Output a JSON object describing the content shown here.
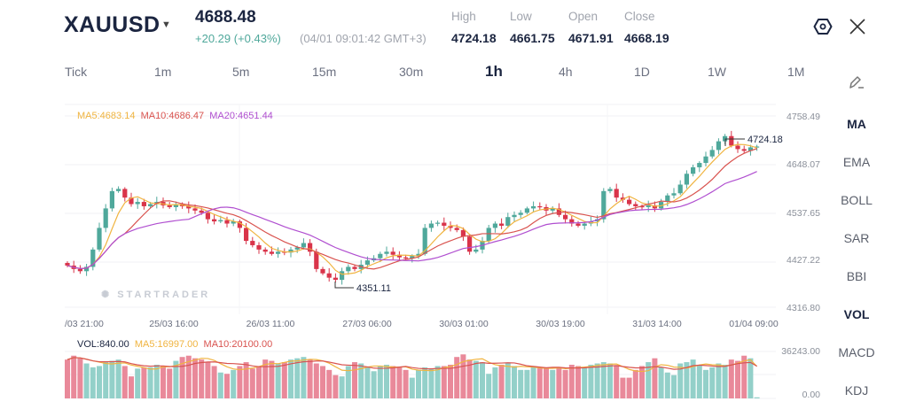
{
  "header": {
    "symbol": "XAUUSD",
    "price": "4688.48",
    "change": "+20.29 (+0.43%)",
    "timestamp": "(04/01 09:01:42 GMT+3)",
    "stats": [
      {
        "label": "High",
        "value": "4724.18"
      },
      {
        "label": "Low",
        "value": "4661.75"
      },
      {
        "label": "Open",
        "value": "4671.91"
      },
      {
        "label": "Close",
        "value": "4668.19"
      }
    ],
    "icons": {
      "settings": "settings-hex-icon",
      "close": "close-icon",
      "draw": "pencil-icon"
    }
  },
  "timeframes": [
    {
      "label": "Tick"
    },
    {
      "label": "1m"
    },
    {
      "label": "5m"
    },
    {
      "label": "15m"
    },
    {
      "label": "30m"
    },
    {
      "label": "1h",
      "active": true
    },
    {
      "label": "4h"
    },
    {
      "label": "1D"
    },
    {
      "label": "1W"
    },
    {
      "label": "1M"
    }
  ],
  "indicators": [
    {
      "label": "MA",
      "active": true
    },
    {
      "label": "EMA"
    },
    {
      "label": "BOLL"
    },
    {
      "label": "SAR"
    },
    {
      "label": "BBI"
    },
    {
      "label": "VOL",
      "active": true
    },
    {
      "label": "MACD"
    },
    {
      "label": "KDJ"
    }
  ],
  "colors": {
    "up": "#4fa89b",
    "down": "#d9344a",
    "vol_up": "#93d0c9",
    "vol_down": "#e9899a",
    "ma5": "#f0b440",
    "ma10": "#d9534f",
    "ma20": "#b04fd0"
  },
  "main_chart": {
    "legend": {
      "ma5": "MA5:4683.14",
      "ma10": "MA10:4686.47",
      "ma20": "MA20:4651.44"
    },
    "price_axis": [
      "4758.49",
      "4648.07",
      "4537.65",
      "4427.22",
      "4316.80"
    ],
    "high_marker": "4724.18",
    "low_marker": "4351.11",
    "watermark": "STARTRADER",
    "time_axis": [
      "/03 21:00",
      "25/03 16:00",
      "26/03 11:00",
      "27/03 06:00",
      "30/03 01:00",
      "30/03 19:00",
      "31/03 14:00",
      "01/04 09:00"
    ]
  },
  "volume_chart": {
    "legend": {
      "vol": "VOL:840.00",
      "ma5": "MA5:16997.00",
      "ma10": "MA10:20100.00"
    },
    "axis": [
      "36243.00",
      "0.00"
    ]
  },
  "chart_data": {
    "type": "candlestick",
    "price_range": [
      4316.8,
      4758.49
    ],
    "volume_range": [
      0,
      36243
    ],
    "closes": [
      4413,
      4405,
      4400,
      4410,
      4450,
      4500,
      4545,
      4585,
      4590,
      4570,
      4555,
      4560,
      4550,
      4555,
      4560,
      4552,
      4548,
      4555,
      4550,
      4545,
      4540,
      4535,
      4520,
      4515,
      4518,
      4510,
      4515,
      4500,
      4470,
      4460,
      4450,
      4445,
      4440,
      4445,
      4443,
      4450,
      4455,
      4465,
      4445,
      4405,
      4395,
      4385,
      4380,
      4400,
      4410,
      4405,
      4415,
      4425,
      4430,
      4440,
      4445,
      4438,
      4432,
      4430,
      4435,
      4440,
      4500,
      4510,
      4512,
      4505,
      4500,
      4495,
      4480,
      4445,
      4450,
      4470,
      4500,
      4510,
      4505,
      4525,
      4530,
      4535,
      4545,
      4550,
      4548,
      4540,
      4545,
      4530,
      4520,
      4510,
      4505,
      4510,
      4515,
      4520,
      4585,
      4590,
      4570,
      4565,
      4555,
      4550,
      4548,
      4552,
      4545,
      4560,
      4575,
      4580,
      4600,
      4625,
      4640,
      4650,
      4665,
      4680,
      4700,
      4712,
      4690,
      4682,
      4678,
      4686,
      4688
    ],
    "volumes": [
      30000,
      33000,
      31000,
      27000,
      24000,
      25000,
      28000,
      29000,
      30000,
      25000,
      17000,
      23000,
      24000,
      24000,
      26000,
      25000,
      23000,
      29000,
      32000,
      33000,
      31000,
      30000,
      28000,
      25000,
      20000,
      19000,
      22000,
      25000,
      28000,
      23000,
      25000,
      30000,
      29000,
      27000,
      28000,
      30000,
      31000,
      32000,
      30000,
      27000,
      25000,
      22000,
      18000,
      17000,
      25000,
      28000,
      27000,
      24000,
      21000,
      25000,
      26000,
      25000,
      24000,
      22000,
      16000,
      22000,
      24000,
      23000,
      25000,
      25000,
      26000,
      32000,
      34000,
      30000,
      29000,
      28000,
      19000,
      24000,
      26000,
      27000,
      25000,
      22000,
      22000,
      25000,
      24000,
      23000,
      22000,
      24000,
      22000,
      26000,
      25000,
      24000,
      26000,
      27000,
      28000,
      27000,
      25000,
      16000,
      16000,
      22000,
      25000,
      28000,
      31000,
      24000,
      20000,
      18000,
      27000,
      28000,
      30000,
      26000,
      22000,
      24000,
      27000,
      26000,
      30000,
      29000,
      33000,
      31000,
      840
    ]
  }
}
